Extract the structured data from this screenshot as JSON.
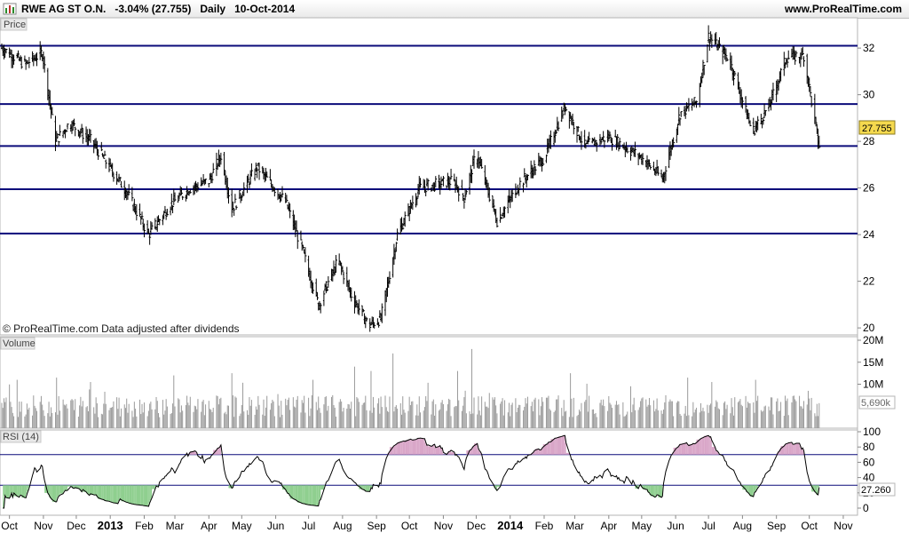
{
  "header": {
    "title": "RWE AG ST O.N.   -3.04% (27.755)   Daily   10-Oct-2014",
    "site": "www.ProRealTime.com"
  },
  "panels": {
    "price_label": "Price",
    "volume_label": "Volume",
    "rsi_label": "RSI (14)",
    "credit": "© ProRealTime.com  Data adjusted after dividends"
  },
  "colors": {
    "level_line": "#0b0b7a",
    "candle": "#000000",
    "price_flag_bg": "#f5d94e",
    "volume_bar": "#9a9a9a",
    "rsi_line": "#000000",
    "rsi_overbought_fill": "#d9a6c8",
    "rsi_oversold_fill": "#8fcf8f",
    "axis_background": "#ffffff"
  },
  "chart_data": [
    {
      "type": "candlestick",
      "panel": "price",
      "ylim": [
        19.7,
        33.3
      ],
      "y_ticks": [
        20,
        22,
        24,
        26,
        28,
        30,
        32
      ],
      "y_tick_labels": [
        "20",
        "22",
        "24",
        "26",
        "28",
        "30",
        "32"
      ],
      "last_value": 27.755,
      "last_value_label": "27.755",
      "horizontal_levels": [
        32.1,
        29.6,
        27.8,
        25.95,
        24.05
      ],
      "anchors": [
        {
          "date": "2012-09-24",
          "close": 32.0
        },
        {
          "date": "2012-10-15",
          "close": 31.3
        },
        {
          "date": "2012-10-31",
          "close": 31.8
        },
        {
          "date": "2012-11-12",
          "close": 28.0
        },
        {
          "date": "2012-11-25",
          "close": 28.8
        },
        {
          "date": "2012-12-15",
          "close": 28.0
        },
        {
          "date": "2013-01-15",
          "close": 25.9
        },
        {
          "date": "2013-02-05",
          "close": 24.0
        },
        {
          "date": "2013-02-25",
          "close": 25.3
        },
        {
          "date": "2013-03-15",
          "close": 26.0
        },
        {
          "date": "2013-04-01",
          "close": 26.3
        },
        {
          "date": "2013-04-12",
          "close": 27.4
        },
        {
          "date": "2013-04-22",
          "close": 25.1
        },
        {
          "date": "2013-05-15",
          "close": 26.9
        },
        {
          "date": "2013-06-10",
          "close": 25.4
        },
        {
          "date": "2013-06-25",
          "close": 23.4
        },
        {
          "date": "2013-07-10",
          "close": 21.0
        },
        {
          "date": "2013-07-28",
          "close": 22.9
        },
        {
          "date": "2013-08-10",
          "close": 21.3
        },
        {
          "date": "2013-08-25",
          "close": 20.1
        },
        {
          "date": "2013-09-05",
          "close": 20.4
        },
        {
          "date": "2013-09-20",
          "close": 24.0
        },
        {
          "date": "2013-10-10",
          "close": 26.0
        },
        {
          "date": "2013-11-10",
          "close": 26.3
        },
        {
          "date": "2013-11-20",
          "close": 25.6
        },
        {
          "date": "2013-12-01",
          "close": 27.5
        },
        {
          "date": "2013-12-20",
          "close": 24.6
        },
        {
          "date": "2014-01-10",
          "close": 26.2
        },
        {
          "date": "2014-02-01",
          "close": 27.3
        },
        {
          "date": "2014-02-20",
          "close": 29.5
        },
        {
          "date": "2014-03-10",
          "close": 27.8
        },
        {
          "date": "2014-04-01",
          "close": 28.2
        },
        {
          "date": "2014-05-01",
          "close": 27.3
        },
        {
          "date": "2014-05-20",
          "close": 26.4
        },
        {
          "date": "2014-06-05",
          "close": 29.2
        },
        {
          "date": "2014-06-20",
          "close": 29.7
        },
        {
          "date": "2014-07-01",
          "close": 32.5
        },
        {
          "date": "2014-07-20",
          "close": 31.5
        },
        {
          "date": "2014-08-10",
          "close": 28.4
        },
        {
          "date": "2014-08-25",
          "close": 29.5
        },
        {
          "date": "2014-09-10",
          "close": 31.6
        },
        {
          "date": "2014-09-26",
          "close": 31.7
        },
        {
          "date": "2014-10-10",
          "close": 27.755
        }
      ]
    },
    {
      "type": "bar",
      "panel": "volume",
      "ylim": [
        0,
        20000000
      ],
      "y_ticks": [
        10000000,
        15000000,
        20000000
      ],
      "y_tick_labels": [
        "10M",
        "15M",
        "20M"
      ],
      "last_value": 5690000,
      "last_value_label": "5,690k",
      "typical_range": [
        2500000,
        7500000
      ],
      "spikes": [
        {
          "date": "2012-10-08",
          "value": 11000000
        },
        {
          "date": "2012-11-13",
          "value": 11500000
        },
        {
          "date": "2012-12-14",
          "value": 10500000
        },
        {
          "date": "2013-02-28",
          "value": 12000000
        },
        {
          "date": "2013-04-22",
          "value": 12500000
        },
        {
          "date": "2013-07-05",
          "value": 11000000
        },
        {
          "date": "2013-08-12",
          "value": 14000000
        },
        {
          "date": "2013-08-27",
          "value": 13000000
        },
        {
          "date": "2013-09-16",
          "value": 17000000
        },
        {
          "date": "2013-11-14",
          "value": 13000000
        },
        {
          "date": "2013-11-27",
          "value": 18000000
        },
        {
          "date": "2014-02-25",
          "value": 12500000
        },
        {
          "date": "2014-06-12",
          "value": 11500000
        },
        {
          "date": "2014-07-04",
          "value": 10500000
        },
        {
          "date": "2014-08-13",
          "value": 11000000
        },
        {
          "date": "2014-09-30",
          "value": 8500000
        }
      ]
    },
    {
      "type": "line",
      "panel": "rsi",
      "name": "RSI (14)",
      "ylim": [
        0,
        100
      ],
      "y_ticks": [
        0,
        20,
        40,
        60,
        80,
        100
      ],
      "y_tick_labels": [
        "0",
        "20",
        "40",
        "60",
        "80",
        "100"
      ],
      "bands": [
        70,
        30
      ],
      "last_value": 27.26,
      "last_value_label": "27.260"
    }
  ],
  "x_axis": {
    "start": "2012-09-24",
    "end": "2014-11-14",
    "ticks": [
      {
        "label": "Oct",
        "date": "2012-10-01",
        "bold": false
      },
      {
        "label": "Nov",
        "date": "2012-11-01",
        "bold": false
      },
      {
        "label": "Dec",
        "date": "2012-12-01",
        "bold": false
      },
      {
        "label": "2013",
        "date": "2013-01-01",
        "bold": true
      },
      {
        "label": "Feb",
        "date": "2013-02-01",
        "bold": false
      },
      {
        "label": "Mar",
        "date": "2013-03-01",
        "bold": false
      },
      {
        "label": "Apr",
        "date": "2013-04-01",
        "bold": false
      },
      {
        "label": "May",
        "date": "2013-05-01",
        "bold": false
      },
      {
        "label": "Jun",
        "date": "2013-06-01",
        "bold": false
      },
      {
        "label": "Jul",
        "date": "2013-07-01",
        "bold": false
      },
      {
        "label": "Aug",
        "date": "2013-08-01",
        "bold": false
      },
      {
        "label": "Sep",
        "date": "2013-09-01",
        "bold": false
      },
      {
        "label": "Oct",
        "date": "2013-10-01",
        "bold": false
      },
      {
        "label": "Nov",
        "date": "2013-11-01",
        "bold": false
      },
      {
        "label": "Dec",
        "date": "2013-12-01",
        "bold": false
      },
      {
        "label": "2014",
        "date": "2014-01-01",
        "bold": true
      },
      {
        "label": "Feb",
        "date": "2014-02-01",
        "bold": false
      },
      {
        "label": "Mar",
        "date": "2014-03-01",
        "bold": false
      },
      {
        "label": "Apr",
        "date": "2014-04-01",
        "bold": false
      },
      {
        "label": "May",
        "date": "2014-05-01",
        "bold": false
      },
      {
        "label": "Jun",
        "date": "2014-06-01",
        "bold": false
      },
      {
        "label": "Jul",
        "date": "2014-07-01",
        "bold": false
      },
      {
        "label": "Aug",
        "date": "2014-08-01",
        "bold": false
      },
      {
        "label": "Sep",
        "date": "2014-09-01",
        "bold": false
      },
      {
        "label": "Oct",
        "date": "2014-10-01",
        "bold": false
      },
      {
        "label": "Nov",
        "date": "2014-11-01",
        "bold": false
      }
    ]
  }
}
